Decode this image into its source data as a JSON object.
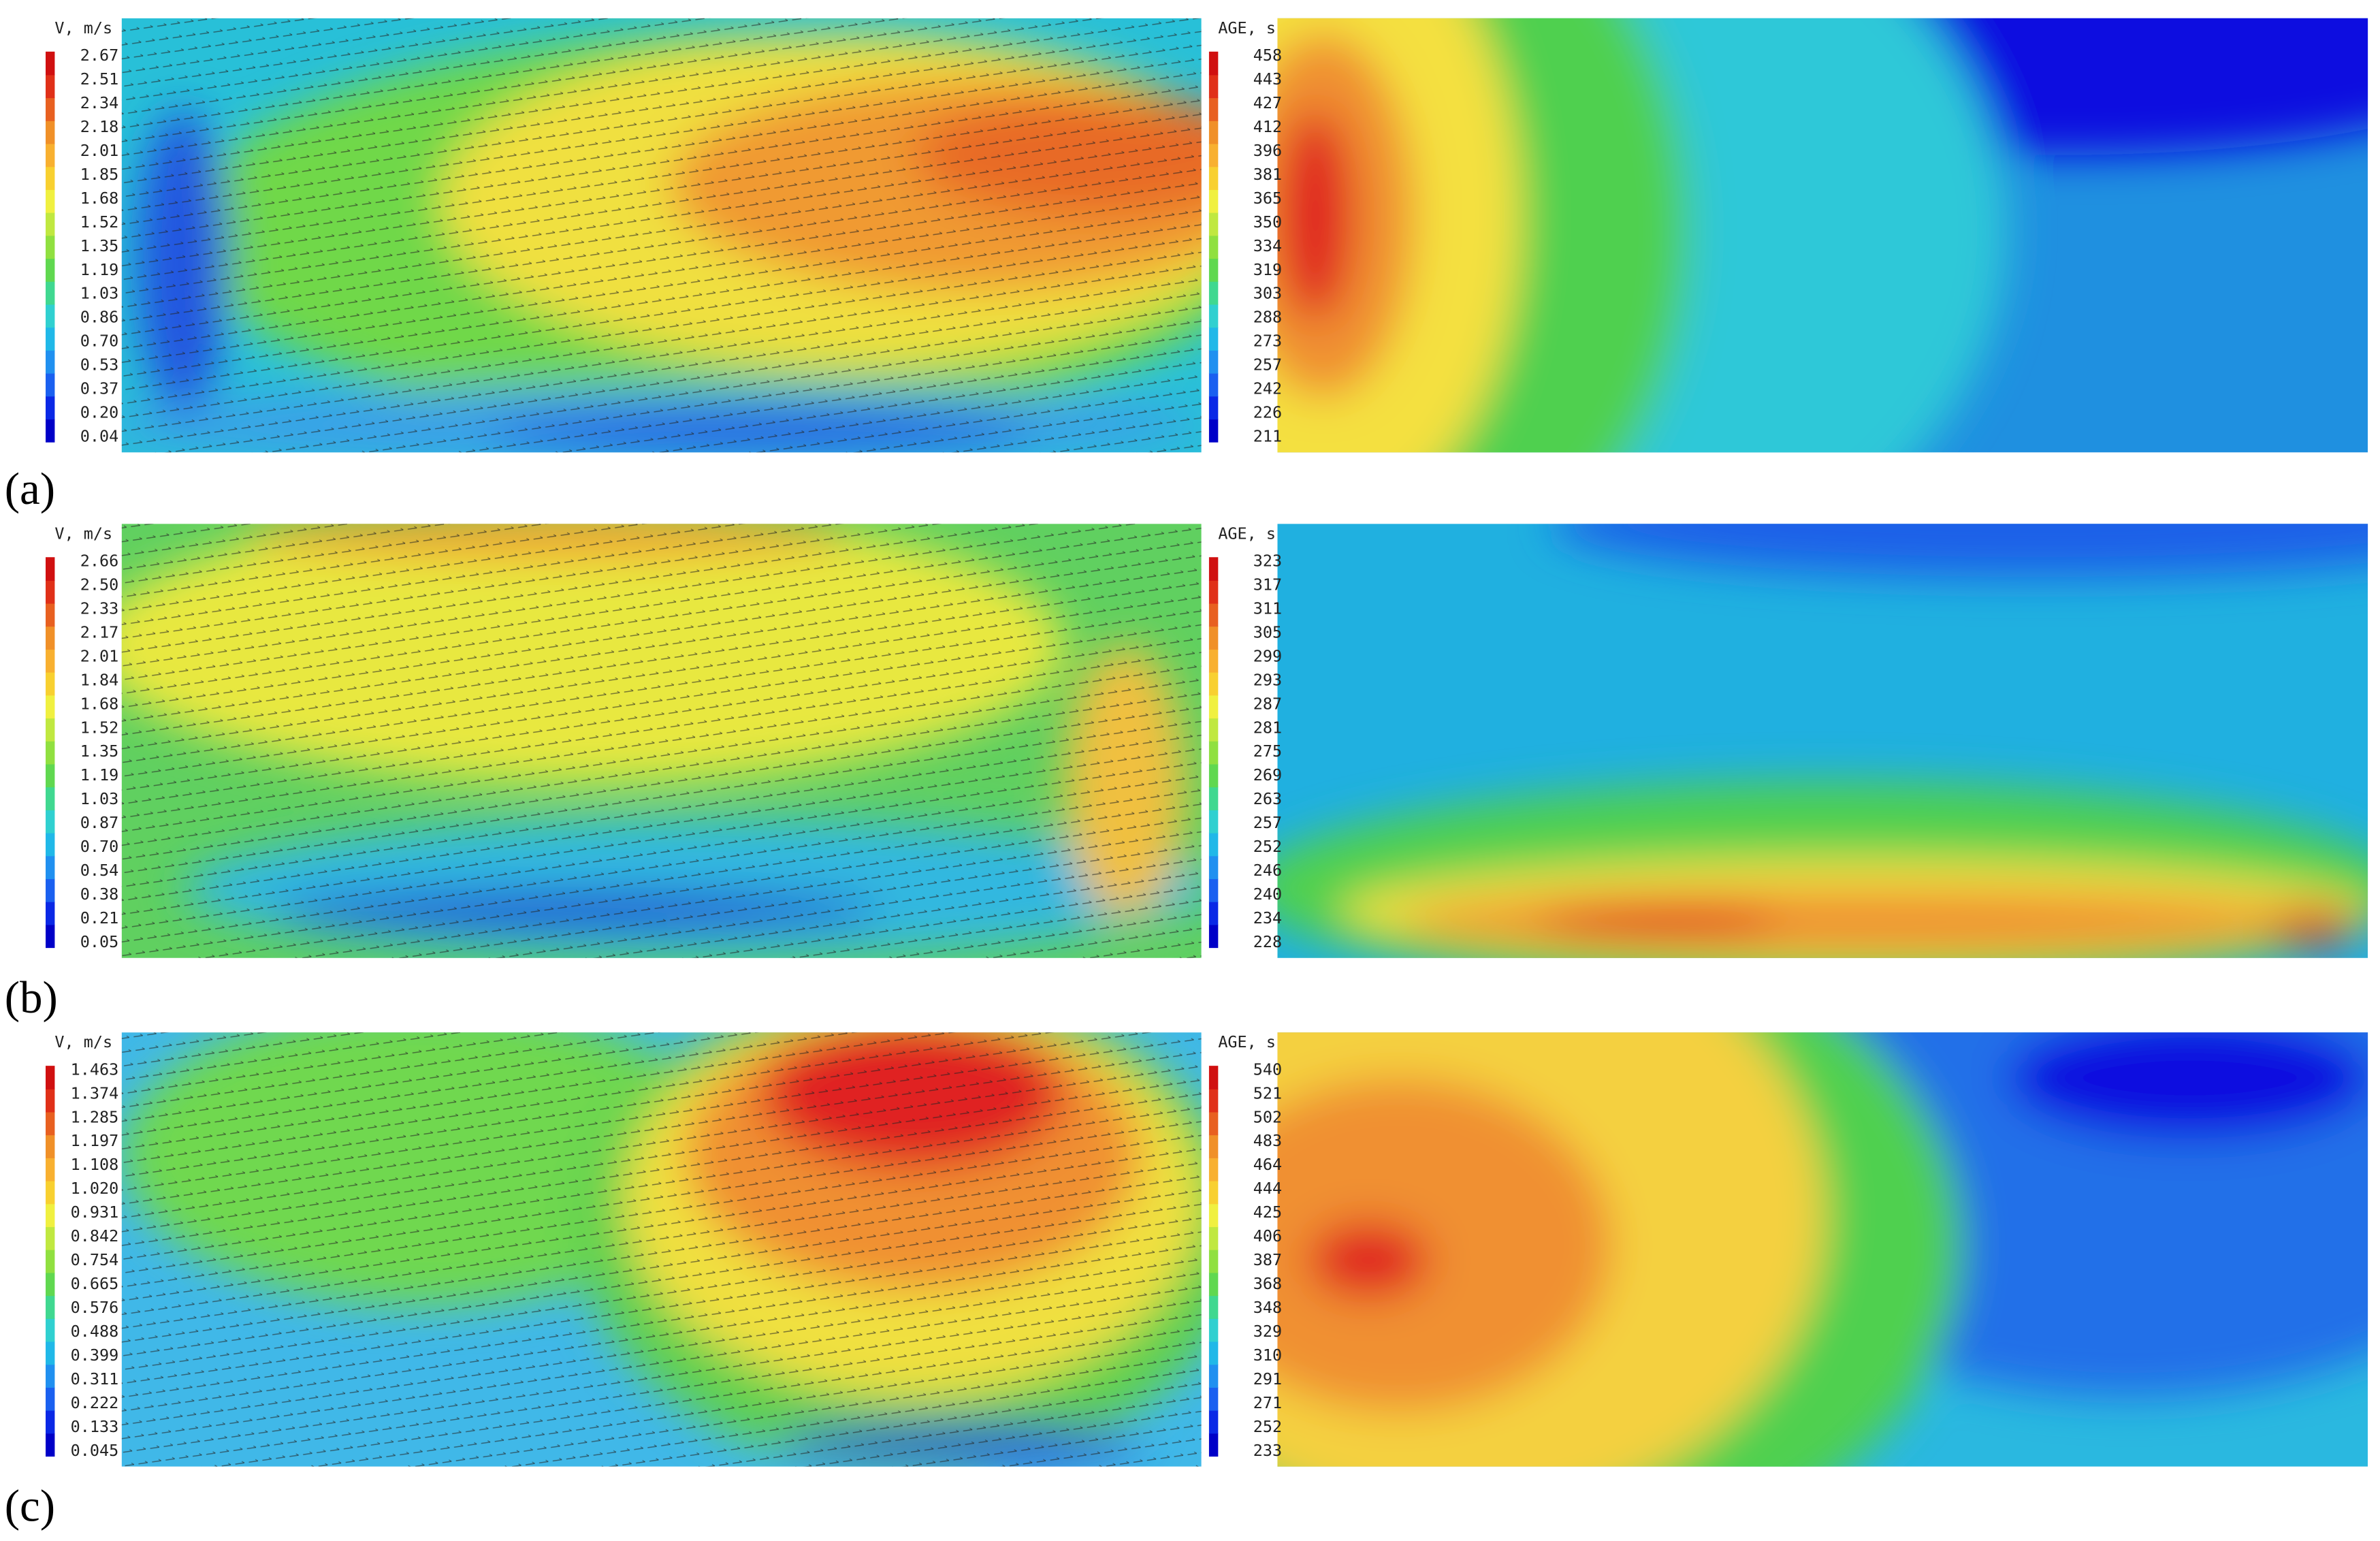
{
  "panels": [
    {
      "label": "(a)",
      "velocity": {
        "title": "V, m/s",
        "ticks": [
          "2.67",
          "2.51",
          "2.34",
          "2.18",
          "2.01",
          "1.85",
          "1.68",
          "1.52",
          "1.35",
          "1.19",
          "1.03",
          "0.86",
          "0.70",
          "0.53",
          "0.37",
          "0.20",
          "0.04"
        ]
      },
      "age": {
        "title": "AGE, s",
        "ticks": [
          "458",
          "443",
          "427",
          "412",
          "396",
          "381",
          "365",
          "350",
          "334",
          "319",
          "303",
          "288",
          "273",
          "257",
          "242",
          "226",
          "211"
        ]
      }
    },
    {
      "label": "(b)",
      "velocity": {
        "title": "V, m/s",
        "ticks": [
          "2.66",
          "2.50",
          "2.33",
          "2.17",
          "2.01",
          "1.84",
          "1.68",
          "1.52",
          "1.35",
          "1.19",
          "1.03",
          "0.87",
          "0.70",
          "0.54",
          "0.38",
          "0.21",
          "0.05"
        ]
      },
      "age": {
        "title": "AGE, s",
        "ticks": [
          "323",
          "317",
          "311",
          "305",
          "299",
          "293",
          "287",
          "281",
          "275",
          "269",
          "263",
          "257",
          "252",
          "246",
          "240",
          "234",
          "228"
        ]
      }
    },
    {
      "label": "(c)",
      "velocity": {
        "title": "V, m/s",
        "ticks": [
          "1.463",
          "1.374",
          "1.285",
          "1.197",
          "1.108",
          "1.020",
          "0.931",
          "0.842",
          "0.754",
          "0.665",
          "0.576",
          "0.488",
          "0.399",
          "0.311",
          "0.222",
          "0.133",
          "0.045"
        ]
      },
      "age": {
        "title": "AGE, s",
        "ticks": [
          "540",
          "521",
          "502",
          "483",
          "464",
          "444",
          "425",
          "406",
          "387",
          "368",
          "348",
          "329",
          "310",
          "291",
          "271",
          "252",
          "233"
        ]
      }
    }
  ]
}
